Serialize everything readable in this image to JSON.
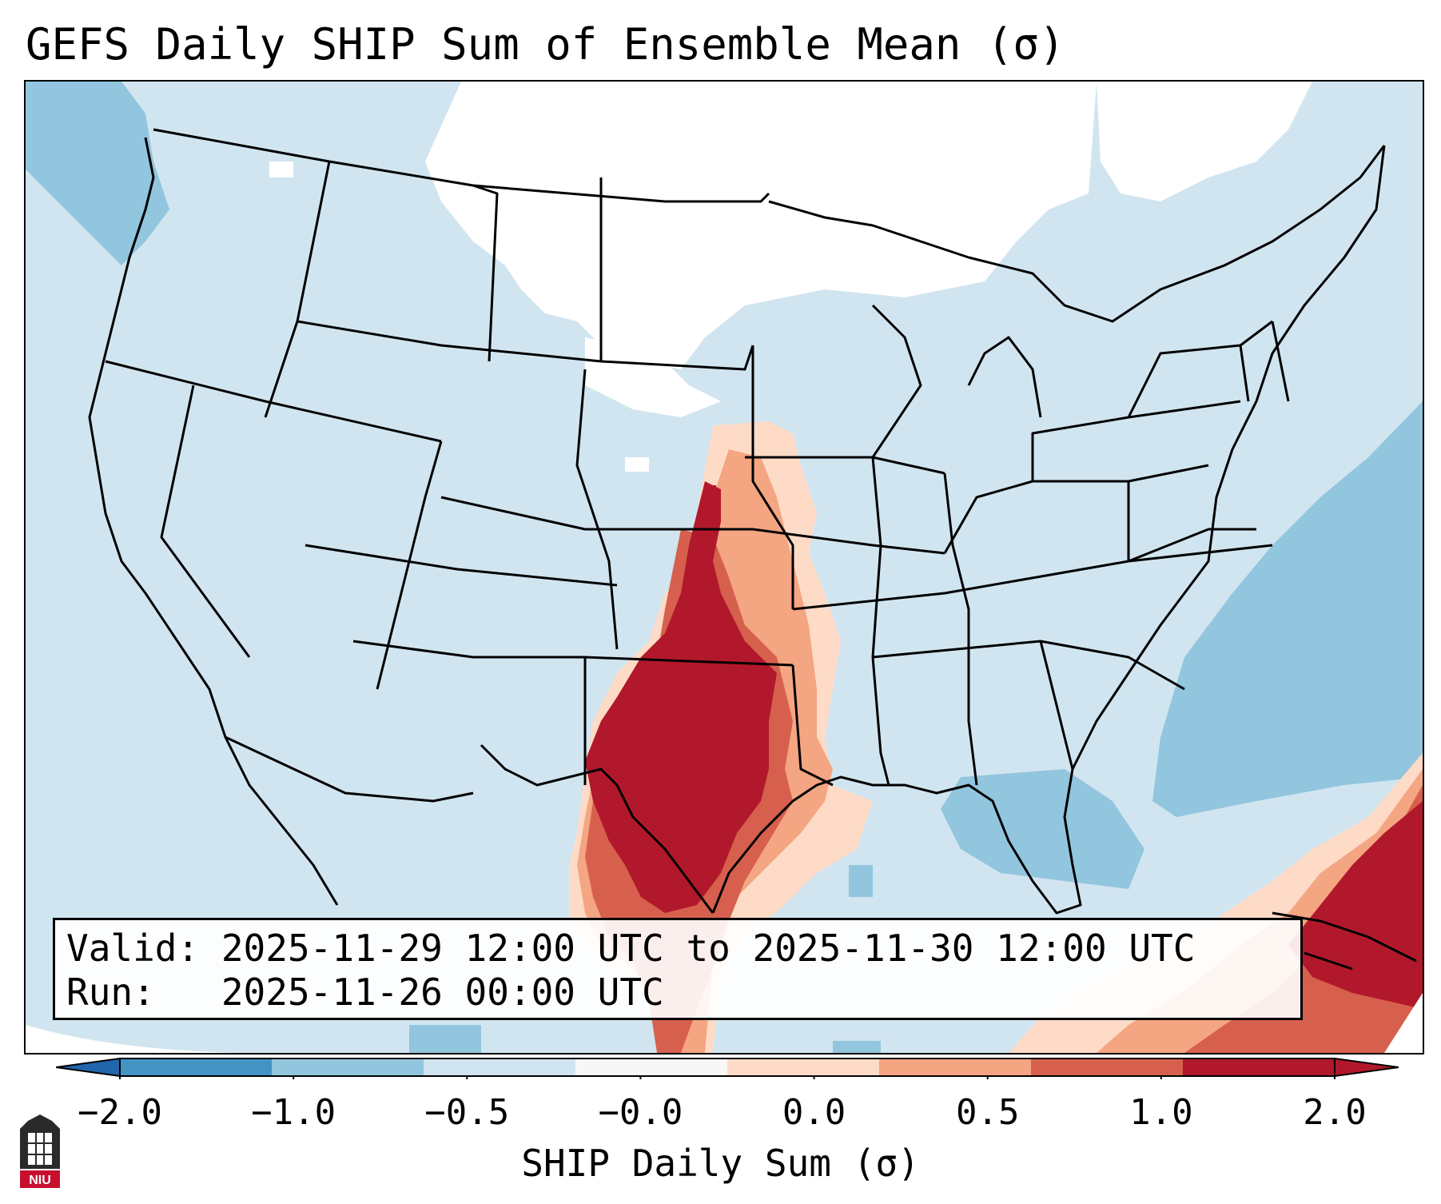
{
  "title": "GEFS Daily SHIP Sum of Ensemble Mean (σ)",
  "info": {
    "valid_line": "Valid: 2025-11-29 12:00 UTC to 2025-11-30 12:00 UTC",
    "run_line": "Run:   2025-11-26 00:00 UTC"
  },
  "colorbar": {
    "label": "SHIP Daily Sum (σ)",
    "ticks": [
      "−2.0",
      "−1.0",
      "−0.5",
      "−0.0",
      "0.0",
      "0.5",
      "1.0",
      "2.0"
    ],
    "colors": [
      "#4393c3",
      "#92c5de",
      "#d1e5f0",
      "#f7f7f7",
      "#fddbc7",
      "#f4a582",
      "#d6604d",
      "#b2182b"
    ],
    "extend": "both"
  },
  "logo": {
    "text": "NIU"
  },
  "map": {
    "region": "Contiguous United States",
    "background_color": "#d1e5f0",
    "outline_color": "#000000"
  }
}
